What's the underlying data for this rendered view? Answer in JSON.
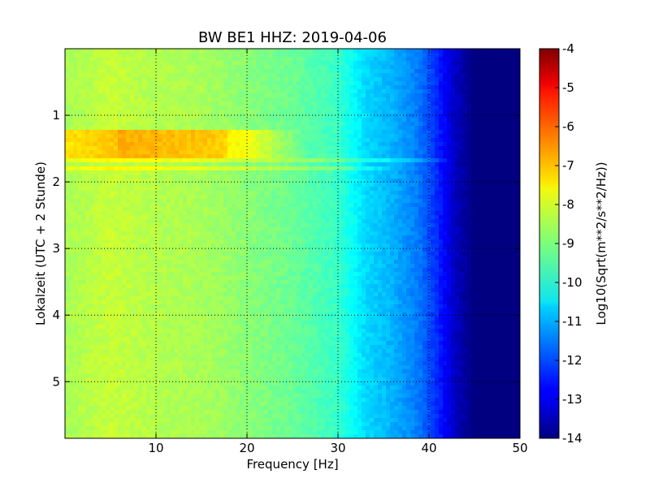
{
  "chart_data": {
    "type": "heatmap",
    "title": "BW BE1 HHZ: 2019-04-06",
    "xlabel": "Frequency [Hz]",
    "ylabel": "Lokalzeit (UTC + 2 Stunde)",
    "xlim": [
      0,
      50
    ],
    "ylim": [
      5.85,
      0
    ],
    "x_ticks": [
      "10",
      "20",
      "30",
      "40",
      "50"
    ],
    "y_ticks": [
      "1",
      "2",
      "3",
      "4",
      "5"
    ],
    "grid": true,
    "colorbar": {
      "label": "Log10(Sqrt(m**2/s**2/Hz))",
      "range": [
        -14,
        -4
      ],
      "ticks": [
        "-4",
        "-5",
        "-6",
        "-7",
        "-8",
        "-9",
        "-10",
        "-11",
        "-12",
        "-13",
        "-14"
      ],
      "colormap": "jet"
    },
    "approx_spectrum_by_frequency": [
      {
        "hz": 0,
        "level": -8.6
      },
      {
        "hz": 5,
        "level": -8.3
      },
      {
        "hz": 10,
        "level": -8.5
      },
      {
        "hz": 15,
        "level": -8.6
      },
      {
        "hz": 20,
        "level": -8.9
      },
      {
        "hz": 25,
        "level": -9.2
      },
      {
        "hz": 30,
        "level": -9.7
      },
      {
        "hz": 33,
        "level": -10.6
      },
      {
        "hz": 36,
        "level": -11.0
      },
      {
        "hz": 39,
        "level": -11.6
      },
      {
        "hz": 41,
        "level": -12.4
      },
      {
        "hz": 43,
        "level": -13.4
      },
      {
        "hz": 45,
        "level": -14.0
      },
      {
        "hz": 50,
        "level": -14.0
      }
    ],
    "bright_bands": [
      {
        "time_start": 1.2,
        "time_end": 1.65,
        "hz_end": 26,
        "boost": 1.1
      },
      {
        "time_start": 1.65,
        "time_end": 1.72,
        "hz_end": 44,
        "boost": 0.6
      },
      {
        "time_start": 1.78,
        "time_end": 1.82,
        "hz_end": 38,
        "boost": 0.6
      },
      {
        "time_start": 5.16,
        "time_end": 5.2,
        "hz_end": 45,
        "boost": 0.9
      }
    ]
  }
}
